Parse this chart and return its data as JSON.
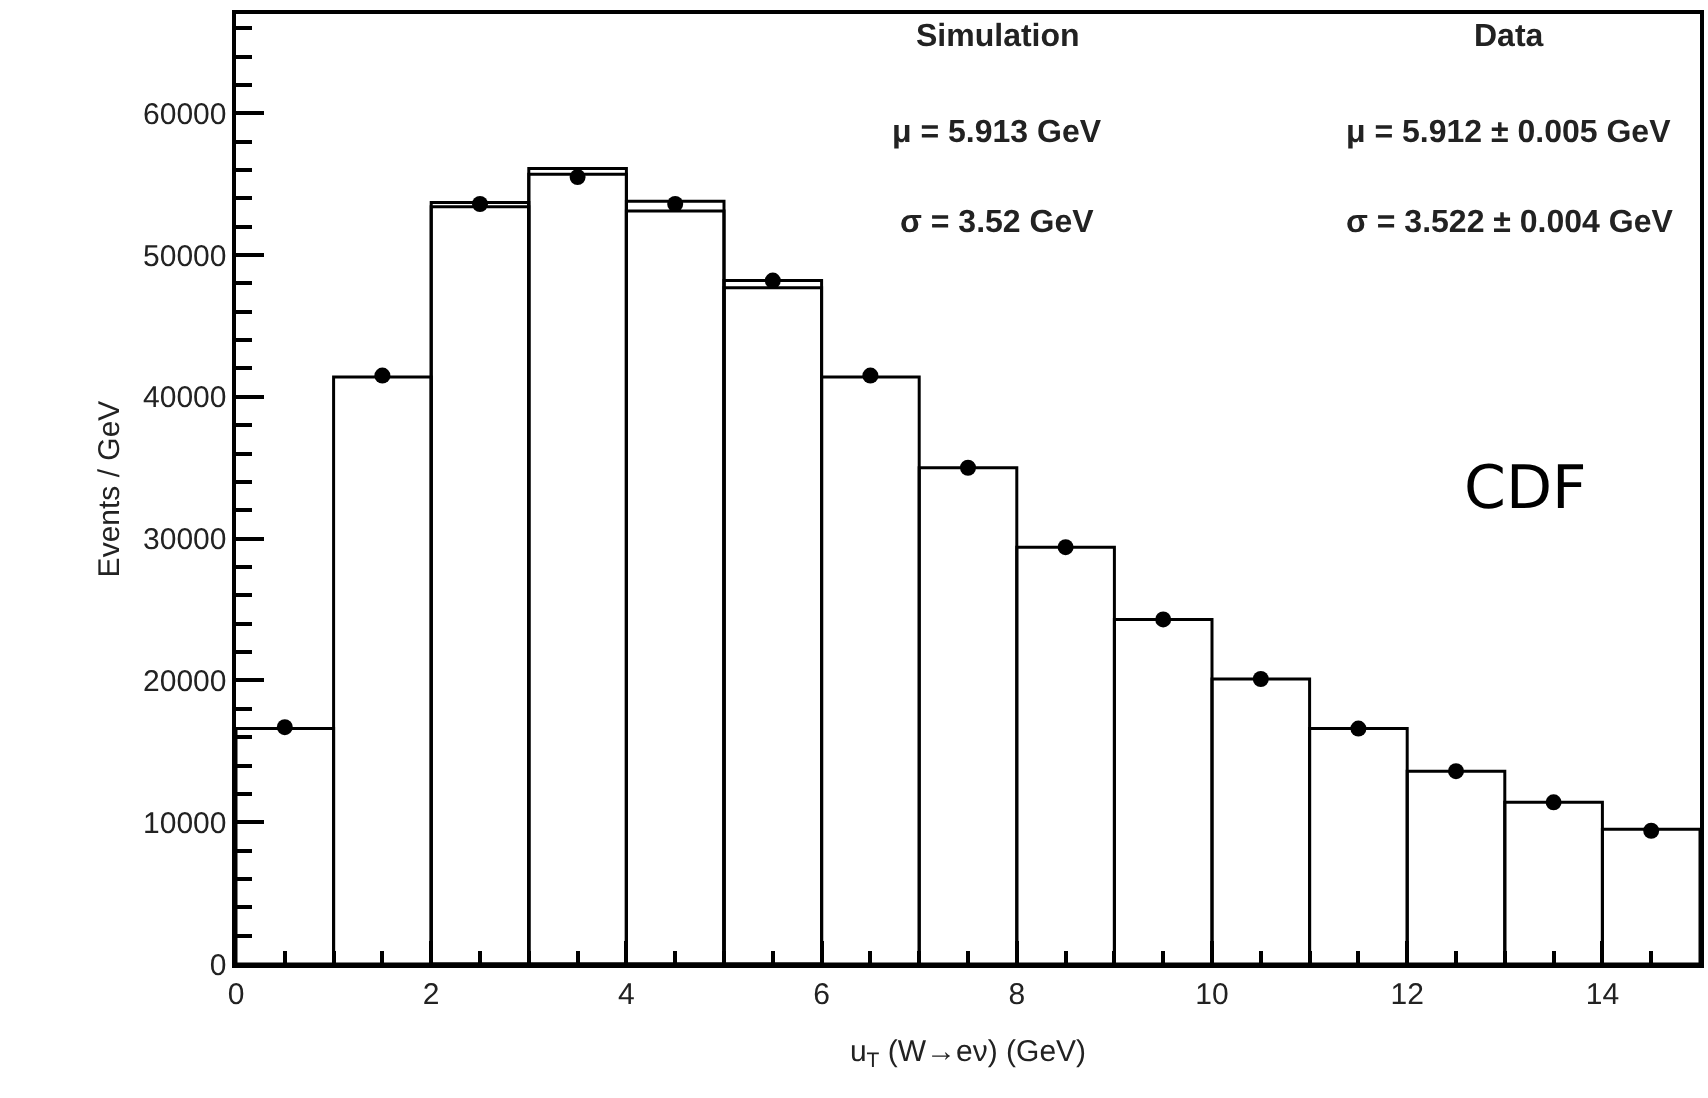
{
  "chart_data": {
    "type": "histogram",
    "xlabel": "u$_{T}$ (W→eν) (GeV)",
    "ylabel": "Events / GeV",
    "bins": [
      0,
      1,
      2,
      3,
      4,
      5,
      6,
      7,
      8,
      9,
      10,
      11,
      12,
      13,
      14,
      15
    ],
    "series": [
      {
        "color": "#000000",
        "values": [
          16600,
          41400,
          53700,
          56100,
          53800,
          48200,
          41400,
          35000,
          29400,
          24300,
          20100,
          16600,
          13600,
          11400,
          9500
        ]
      },
      {
        "color": "#000000",
        "values": [
          null,
          null,
          53400,
          55700,
          53100,
          47700,
          null,
          null,
          null,
          null,
          null,
          null,
          null,
          null,
          null
        ]
      },
      {
        "type": "scatter",
        "color": "#000000",
        "marker": "circle",
        "x": [
          0.5,
          1.5,
          2.5,
          3.5,
          4.5,
          5.5,
          6.5,
          7.5,
          8.5,
          9.5,
          10.5,
          11.5,
          12.5,
          13.5,
          14.5
        ],
        "values": [
          16700,
          41500,
          53600,
          55500,
          53600,
          48200,
          41500,
          35000,
          29400,
          24300,
          20100,
          16600,
          13600,
          11400,
          9400
        ]
      }
    ],
    "xlim": [
      0,
      15
    ],
    "xticks": [
      0,
      2,
      4,
      6,
      8,
      10,
      12,
      14
    ],
    "ylim": [
      0,
      67000
    ],
    "yticks": [
      0,
      10000,
      20000,
      30000,
      40000,
      50000,
      60000
    ],
    "annotations": [
      "Simulation",
      "Data",
      "μ = 5.913 GeV",
      "μ = 5.912 ± 0.005 GeV",
      "σ = 3.52 GeV",
      "σ = 3.522 ± 0.004 GeV",
      "CDF"
    ]
  }
}
